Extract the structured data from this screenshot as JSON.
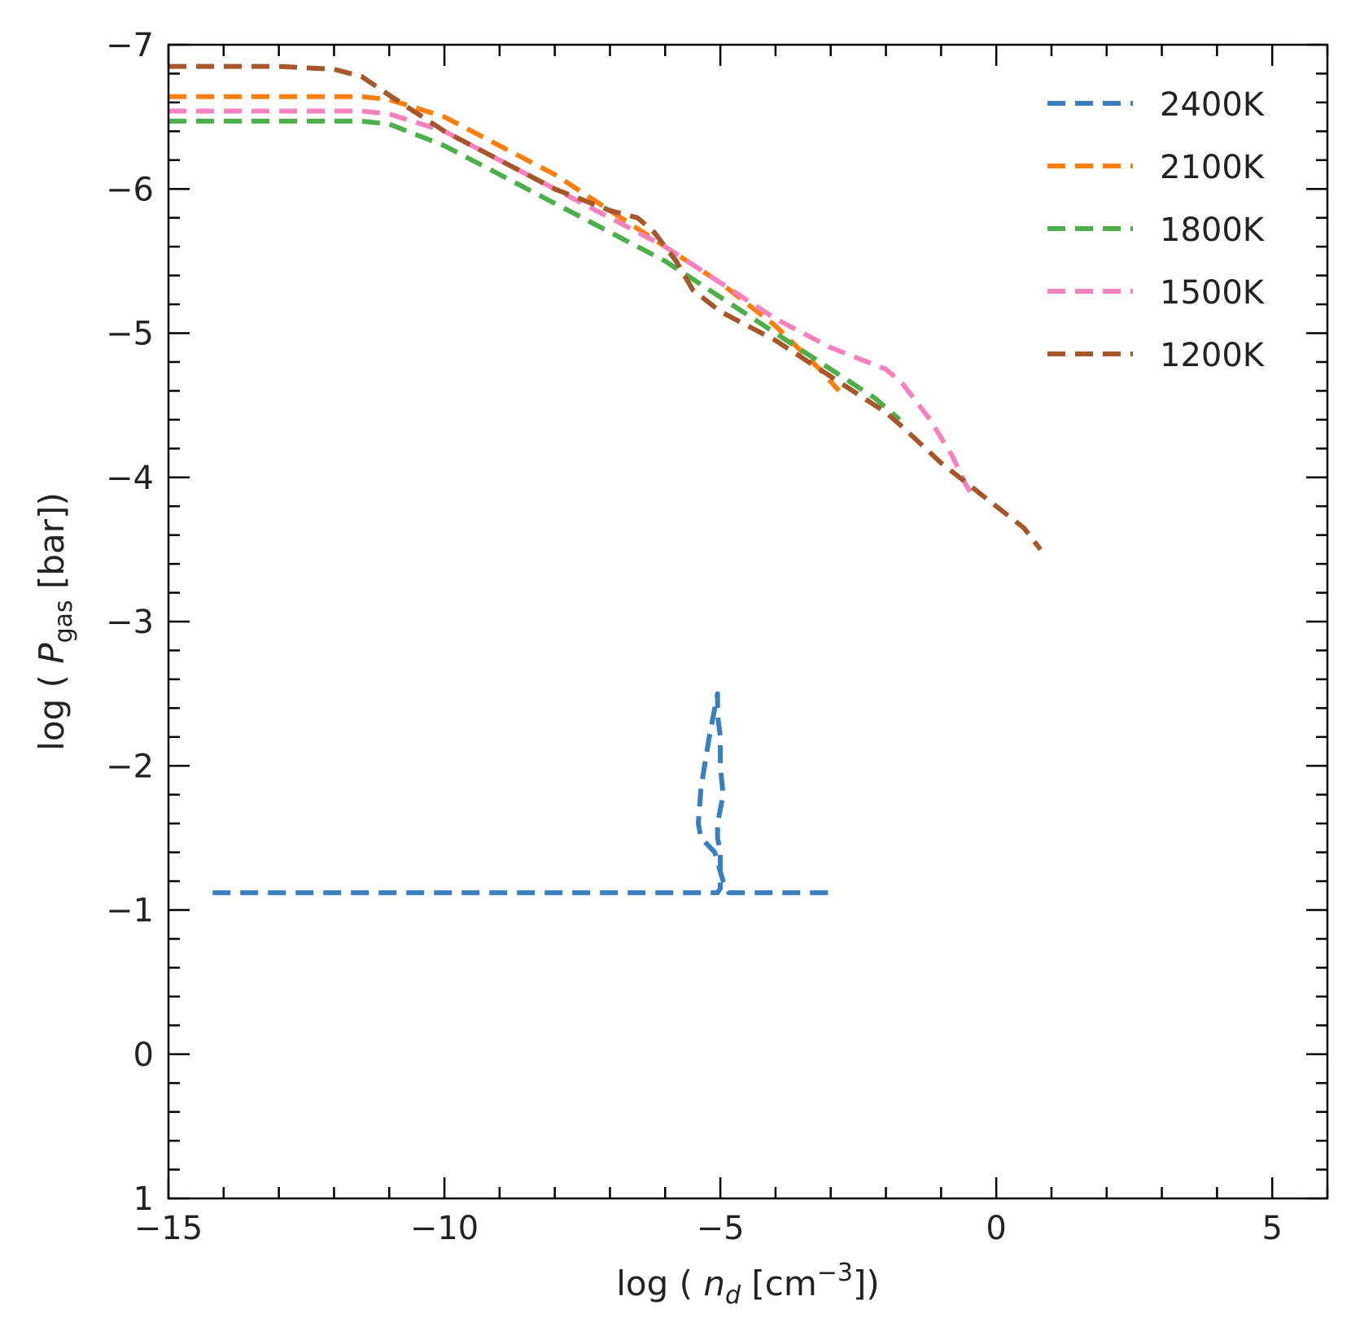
{
  "chart_data": {
    "type": "line",
    "title": "",
    "xlabel": {
      "prefix": "log ( ",
      "var": "n",
      "sub": "d",
      "unit_open": "  [cm",
      "sup": "−3",
      "unit_close": "])"
    },
    "ylabel": {
      "prefix": "log ( ",
      "var": "P",
      "sub": "gas",
      "suffix": " [bar])"
    },
    "xlim": [
      -15,
      6
    ],
    "ylim": [
      -7,
      1
    ],
    "y_inverted": true,
    "x_major_ticks": [
      -15,
      -10,
      -5,
      0,
      5
    ],
    "x_tick_labels": [
      "−15",
      "−10",
      "−5",
      "0",
      "5"
    ],
    "y_major_ticks": [
      -7,
      -6,
      -5,
      -4,
      -3,
      -2,
      -1,
      0,
      1
    ],
    "y_tick_labels": [
      "−7",
      "−6",
      "−5",
      "−4",
      "−3",
      "−2",
      "−1",
      "0",
      "1"
    ],
    "grid": false,
    "legend_position": "top-right",
    "line_style": "dashed",
    "series": [
      {
        "name": "2400K",
        "color": "#3a7ebf",
        "x": [
          -14.2,
          -13.0,
          -12.0,
          -11.5,
          -11.0,
          -10.0,
          -9.0,
          -8.0,
          -7.0,
          -6.5,
          -6.0,
          -5.6,
          -5.3,
          -5.15,
          -5.05,
          -5.0,
          -5.0,
          -5.05,
          -5.05,
          -4.95,
          -5.0,
          -5.0,
          -5.05,
          -5.05,
          -5.2,
          -5.35,
          -5.4,
          -5.35,
          -5.1,
          -4.95,
          -4.85,
          -4.7,
          -4.0,
          -3.0
        ],
        "y": [
          -1.12,
          -1.12,
          -1.12,
          -1.12,
          -1.12,
          -1.12,
          -1.12,
          -1.12,
          -1.12,
          -1.12,
          -1.12,
          -1.12,
          -1.12,
          -1.12,
          -1.12,
          -1.15,
          -1.4,
          -1.5,
          -1.6,
          -1.8,
          -2.0,
          -2.2,
          -2.35,
          -2.5,
          -2.2,
          -1.85,
          -1.6,
          -1.5,
          -1.4,
          -1.2,
          -1.12,
          -1.12,
          -1.12,
          -1.12
        ]
      },
      {
        "name": "2100K",
        "color": "#ff7f0e",
        "x": [
          -15,
          -13.0,
          -11.5,
          -11.0,
          -10.0,
          -9.0,
          -8.0,
          -7.0,
          -6.0,
          -5.0,
          -4.0,
          -3.2,
          -2.85
        ],
        "y": [
          -6.64,
          -6.64,
          -6.64,
          -6.62,
          -6.5,
          -6.3,
          -6.1,
          -5.85,
          -5.6,
          -5.35,
          -5.05,
          -4.75,
          -4.6
        ]
      },
      {
        "name": "1800K",
        "color": "#4daf4a",
        "x": [
          -15,
          -13.0,
          -11.5,
          -11.0,
          -10.0,
          -9.0,
          -8.0,
          -7.0,
          -6.0,
          -5.0,
          -4.0,
          -3.0,
          -2.2,
          -1.9,
          -1.75
        ],
        "y": [
          -6.47,
          -6.47,
          -6.47,
          -6.45,
          -6.3,
          -6.1,
          -5.9,
          -5.7,
          -5.5,
          -5.25,
          -5.0,
          -4.75,
          -4.55,
          -4.45,
          -4.4
        ]
      },
      {
        "name": "1500K",
        "color": "#f781bf",
        "x": [
          -15,
          -13.0,
          -11.5,
          -11.0,
          -10.0,
          -9.0,
          -8.0,
          -7.0,
          -6.0,
          -5.0,
          -4.0,
          -3.0,
          -2.0,
          -1.7,
          -1.2,
          -0.8,
          -0.55,
          -0.4
        ],
        "y": [
          -6.54,
          -6.54,
          -6.54,
          -6.52,
          -6.4,
          -6.2,
          -6.0,
          -5.8,
          -5.6,
          -5.35,
          -5.1,
          -4.9,
          -4.75,
          -4.65,
          -4.4,
          -4.15,
          -3.95,
          -3.85
        ]
      },
      {
        "name": "1200K",
        "color": "#a65628",
        "x": [
          -15,
          -13.0,
          -12.0,
          -11.5,
          -11.0,
          -10.0,
          -9.0,
          -8.0,
          -7.0,
          -6.5,
          -6.2,
          -5.8,
          -5.5,
          -5.0,
          -4.0,
          -3.0,
          -2.0,
          -1.7,
          -1.0,
          -0.5,
          0.0,
          0.5,
          0.8
        ],
        "y": [
          -6.85,
          -6.85,
          -6.83,
          -6.78,
          -6.65,
          -6.4,
          -6.2,
          -6.0,
          -5.85,
          -5.8,
          -5.7,
          -5.5,
          -5.3,
          -5.15,
          -4.95,
          -4.7,
          -4.45,
          -4.35,
          -4.1,
          -3.95,
          -3.8,
          -3.65,
          -3.5
        ]
      }
    ]
  }
}
